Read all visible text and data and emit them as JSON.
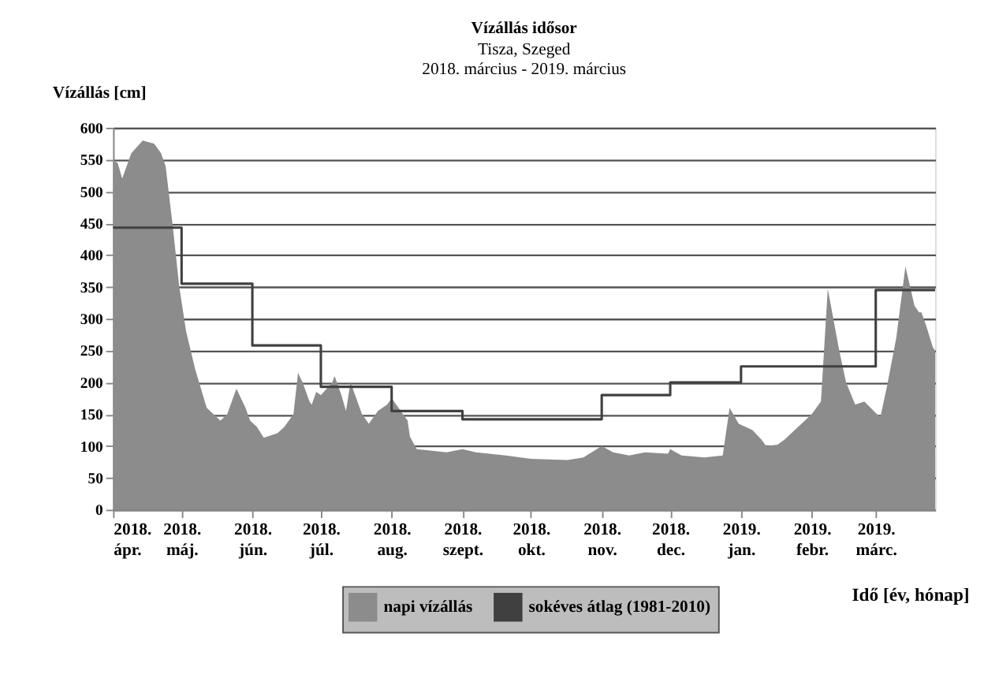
{
  "chart_data": {
    "type": "area",
    "title": "Vízállás idősor",
    "subtitle": "Tisza, Szeged\n2018. március - 2019. március",
    "ylabel": "Vízállás [cm]",
    "xlabel": "Idő  [év, hónap]",
    "xlim": [
      "2018-04-01",
      "2019-03-27"
    ],
    "xticks": [
      {
        "value": "2018-04-01",
        "label": "2018. ápr."
      },
      {
        "value": "2018-05-01",
        "label": "2018. máj."
      },
      {
        "value": "2018-06-01",
        "label": "2018. jún."
      },
      {
        "value": "2018-07-01",
        "label": "2018. júl."
      },
      {
        "value": "2018-08-01",
        "label": "2018. aug."
      },
      {
        "value": "2018-09-01",
        "label": "2018. szept."
      },
      {
        "value": "2018-10-01",
        "label": "2018. okt."
      },
      {
        "value": "2018-11-01",
        "label": "2018. nov."
      },
      {
        "value": "2018-12-01",
        "label": "2018. dec."
      },
      {
        "value": "2019-01-01",
        "label": "2019. jan."
      },
      {
        "value": "2019-02-01",
        "label": "2019. febr."
      },
      {
        "value": "2019-03-01",
        "label": "2019. márc."
      }
    ],
    "ylim": [
      0,
      600
    ],
    "yticks": [
      0,
      50,
      100,
      150,
      200,
      250,
      300,
      350,
      400,
      450,
      500,
      550,
      600
    ],
    "grid": "y",
    "legend": "bottom",
    "series": [
      {
        "name": "napi vízállás",
        "color": "#8c8c8c",
        "x": [
          "2018-04-01",
          "2018-04-03",
          "2018-04-05",
          "2018-04-09",
          "2018-04-14",
          "2018-04-19",
          "2018-04-22",
          "2018-04-24",
          "2018-04-27",
          "2018-04-30",
          "2018-05-03",
          "2018-05-07",
          "2018-05-12",
          "2018-05-18",
          "2018-05-21",
          "2018-05-25",
          "2018-05-29",
          "2018-05-31",
          "2018-06-03",
          "2018-06-06",
          "2018-06-12",
          "2018-06-15",
          "2018-06-19",
          "2018-06-21",
          "2018-06-23",
          "2018-06-26",
          "2018-06-27",
          "2018-06-29",
          "2018-07-01",
          "2018-07-06",
          "2018-07-07",
          "2018-07-10",
          "2018-07-12",
          "2018-07-14",
          "2018-07-19",
          "2018-07-22",
          "2018-07-26",
          "2018-07-30",
          "2018-08-01",
          "2018-08-04",
          "2018-08-08",
          "2018-08-09",
          "2018-08-12",
          "2018-08-18",
          "2018-08-25",
          "2018-09-01",
          "2018-09-07",
          "2018-09-20",
          "2018-10-01",
          "2018-10-17",
          "2018-10-24",
          "2018-11-01",
          "2018-11-06",
          "2018-11-13",
          "2018-11-20",
          "2018-11-30",
          "2018-12-01",
          "2018-12-06",
          "2018-12-16",
          "2018-12-24",
          "2018-12-27",
          "2018-12-31",
          "2019-01-06",
          "2019-01-10",
          "2019-01-12",
          "2019-01-17",
          "2019-01-20",
          "2019-01-26",
          "2019-02-01",
          "2019-02-05",
          "2019-02-08",
          "2019-02-13",
          "2019-02-16",
          "2019-02-20",
          "2019-02-24",
          "2019-03-03",
          "2019-03-06",
          "2019-03-10",
          "2019-03-14",
          "2019-03-18",
          "2019-03-20",
          "2019-03-21",
          "2019-03-23",
          "2019-03-26",
          "2019-03-27"
        ],
        "values": [
          548,
          545,
          520,
          560,
          580,
          575,
          560,
          540,
          450,
          350,
          280,
          220,
          160,
          140,
          150,
          190,
          160,
          140,
          130,
          113,
          120,
          130,
          150,
          215,
          200,
          170,
          165,
          185,
          180,
          200,
          210,
          180,
          155,
          200,
          150,
          135,
          155,
          165,
          175,
          160,
          140,
          115,
          95,
          93,
          90,
          95,
          90,
          85,
          80,
          78,
          82,
          100,
          90,
          85,
          90,
          88,
          95,
          85,
          82,
          85,
          160,
          135,
          125,
          110,
          100,
          102,
          110,
          130,
          150,
          170,
          347,
          250,
          200,
          165,
          170,
          145,
          195,
          270,
          382,
          320,
          310,
          310,
          290,
          255,
          250
        ]
      },
      {
        "name": "sokéves átlag (1981-2010)",
        "type": "step",
        "color": "#404040",
        "x": [
          "2018-04-01",
          "2018-05-01",
          "2018-06-01",
          "2018-07-01",
          "2018-08-01",
          "2018-09-01",
          "2018-10-01",
          "2018-11-01",
          "2018-12-01",
          "2019-01-01",
          "2019-02-01",
          "2019-03-01",
          "2019-03-27"
        ],
        "values": [
          443,
          355,
          258,
          193,
          155,
          142,
          142,
          180,
          200,
          225,
          225,
          345,
          345
        ]
      }
    ]
  }
}
